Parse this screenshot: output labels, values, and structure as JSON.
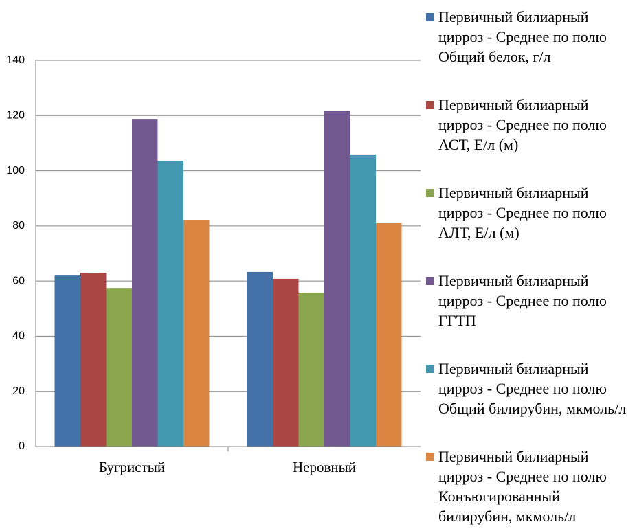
{
  "chart_data": {
    "type": "bar",
    "categories": [
      "Бугристый",
      "Неровный"
    ],
    "series": [
      {
        "name": "Первичный билиарный цирроз - Среднее по полю Общий белок, г/л",
        "color": "#4571a9",
        "values": [
          62.0,
          63.3
        ]
      },
      {
        "name": "Первичный билиарный цирроз - Среднее по полю АСТ, Е/л (м)",
        "color": "#aa4644",
        "values": [
          63.0,
          60.8
        ]
      },
      {
        "name": "Первичный билиарный цирроз - Среднее по полю АЛТ, Е/л (м)",
        "color": "#89a54e",
        "values": [
          57.5,
          55.8
        ]
      },
      {
        "name": "Первичный билиарный цирроз - Среднее по полю ГГТП",
        "color": "#71588f",
        "values": [
          118.8,
          121.8
        ]
      },
      {
        "name": "Первичный билиарный цирроз - Среднее по полю Общий билирубин, мкмоль/л",
        "color": "#4298af",
        "values": [
          103.6,
          105.9
        ]
      },
      {
        "name": "Первичный билиарный цирроз - Среднее по полю Конъюгированный билирубин, мкмоль/л",
        "color": "#db8543",
        "values": [
          82.2,
          81.2
        ]
      }
    ],
    "ylim": [
      0,
      140
    ],
    "yticks": [
      0,
      20,
      40,
      60,
      80,
      100,
      120,
      140
    ],
    "grid": true
  }
}
